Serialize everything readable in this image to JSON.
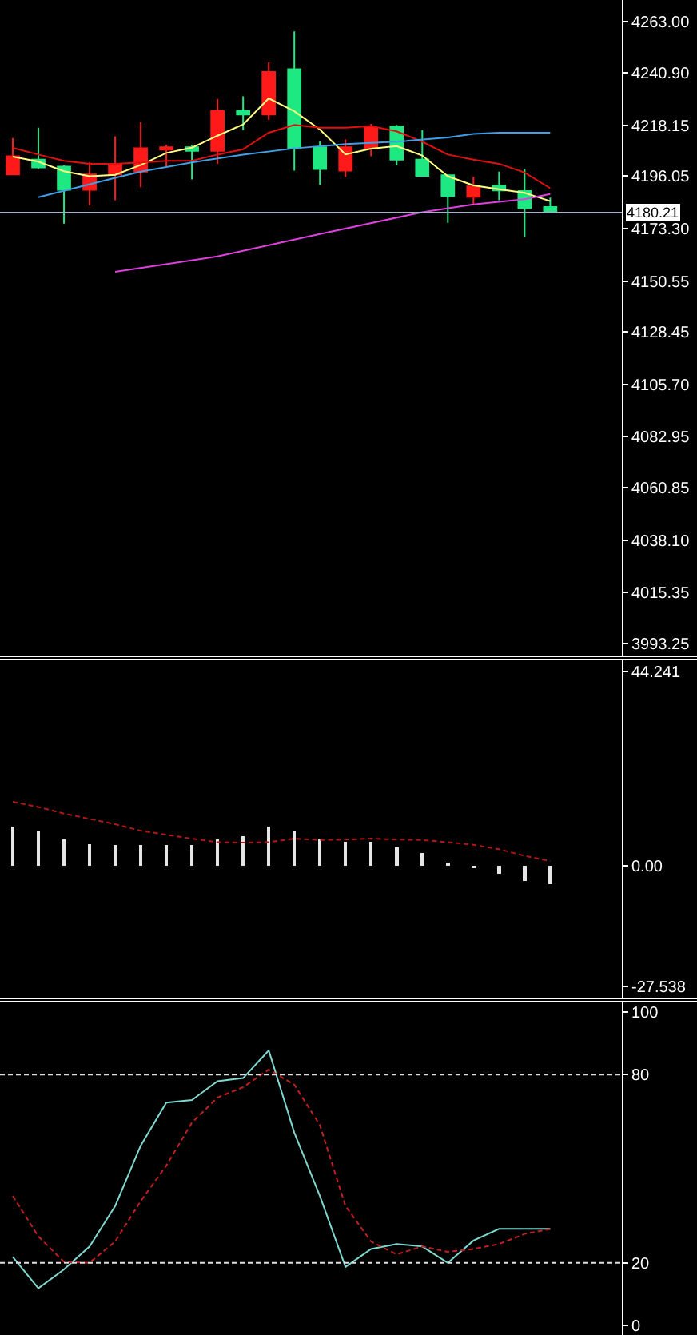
{
  "chart_data": [
    {
      "type": "candlestick",
      "categories": [
        null,
        null,
        null,
        null,
        null,
        null,
        null,
        null,
        null,
        null,
        null,
        null,
        null,
        null,
        null,
        null,
        null,
        null,
        null,
        null,
        null,
        null
      ],
      "ohlc": [
        [
          4196.8,
          4212.6,
          4196.8,
          4204.7
        ],
        [
          4203.2,
          4217.1,
          4199.1,
          4199.8
        ],
        [
          4200.2,
          4200.7,
          4175.4,
          4190.1
        ],
        [
          4190.1,
          4202.0,
          4183.3,
          4196.8
        ],
        [
          4196.8,
          4213.3,
          4185.6,
          4201.4
        ],
        [
          4198.0,
          4219.4,
          4191.2,
          4208.1
        ],
        [
          4207.5,
          4209.7,
          4199.8,
          4208.6
        ],
        [
          4208.6,
          4209.7,
          4194.6,
          4207.0
        ],
        [
          4207.0,
          4229.6,
          4201.4,
          4224.4
        ],
        [
          4224.4,
          4230.7,
          4216.0,
          4222.8
        ],
        [
          4222.8,
          4245.4,
          4220.5,
          4241.3
        ],
        [
          4242.5,
          4258.9,
          4198.4,
          4208.1
        ],
        [
          4208.6,
          4211.1,
          4192.3,
          4199.1
        ],
        [
          4198.4,
          4212.0,
          4195.7,
          4208.6
        ],
        [
          4208.1,
          4218.7,
          4204.7,
          4217.1
        ],
        [
          4217.6,
          4218.3,
          4200.7,
          4203.2
        ],
        [
          4203.2,
          4216.0,
          4196.0,
          4196.2
        ],
        [
          4196.4,
          4196.8,
          4175.8,
          4187.4
        ],
        [
          4187.1,
          4195.7,
          4184.0,
          4191.6
        ],
        [
          4191.9,
          4198.0,
          4185.6,
          4189.8
        ],
        [
          4189.6,
          4199.1,
          4169.7,
          4182.2
        ],
        [
          4182.6,
          4186.7,
          4179.9,
          4180.2
        ]
      ],
      "colors": [
        "#ff1a1a",
        "#1ee882",
        "#1ee882",
        "#ff1a1a",
        "#ff1a1a",
        "#ff1a1a",
        "#ff1a1a",
        "#1ee882",
        "#ff1a1a",
        "#1ee882",
        "#ff1a1a",
        "#1ee882",
        "#1ee882",
        "#ff1a1a",
        "#ff1a1a",
        "#1ee882",
        "#1ee882",
        "#1ee882",
        "#ff1a1a",
        "#1ee882",
        "#1ee882",
        "#1ee882"
      ],
      "series": [
        {
          "type": "line",
          "color": "#ffff80",
          "values": [
            4204.5,
            4202.3,
            4198.2,
            4196.0,
            4196.6,
            4200.9,
            4206.1,
            4208.4,
            4213.6,
            4218.5,
            4229.8,
            4224.2,
            4216.3,
            4205.5,
            4208.0,
            4209.1,
            4205.0,
            4196.0,
            4192.0,
            4190.4,
            4188.8,
            4185.2
          ]
        },
        {
          "type": "line",
          "color": "#e01010",
          "values": [
            4208.3,
            4205.4,
            4202.7,
            4201.4,
            4201.4,
            4202.0,
            4202.7,
            4202.7,
            4205.4,
            4207.7,
            4214.9,
            4218.3,
            4217.1,
            4217.1,
            4217.8,
            4215.5,
            4211.0,
            4205.4,
            4203.2,
            4201.4,
            4197.6,
            4190.8
          ]
        },
        {
          "type": "line",
          "color": "#3fa0e8",
          "values": [
            null,
            4186.9,
            null,
            null,
            4195.3,
            4198.0,
            null,
            4202.0,
            null,
            4205.4,
            null,
            4208.1,
            null,
            4210.0,
            null,
            4211.0,
            null,
            4212.8,
            4214.4,
            4214.9,
            4214.9,
            4214.9
          ]
        },
        {
          "type": "line",
          "color": "#e040e0",
          "values": [
            null,
            null,
            null,
            null,
            4154.5,
            null,
            null,
            null,
            4161.2,
            null,
            null,
            null,
            4170.9,
            null,
            null,
            null,
            4180.4,
            null,
            4183.8,
            null,
            4186.0,
            4188.3
          ]
        }
      ],
      "ylim": [
        3988,
        4272.5
      ],
      "yticks": [
        {
          "value": 4263,
          "label": "4263.00"
        },
        {
          "value": 4240.9,
          "label": "4240.90"
        },
        {
          "value": 4218.15,
          "label": "4218.15"
        },
        {
          "value": 4196.05,
          "label": "4196.05"
        },
        {
          "value": 4173.3,
          "label": "4173.30"
        },
        {
          "value": 4150.55,
          "label": "4150.55"
        },
        {
          "value": 4128.45,
          "label": "4128.45"
        },
        {
          "value": 4105.7,
          "label": "4105.70"
        },
        {
          "value": 4082.95,
          "label": "4082.95"
        },
        {
          "value": 4060.85,
          "label": "4060.85"
        },
        {
          "value": 4038.1,
          "label": "4038.10"
        },
        {
          "value": 4015.35,
          "label": "4015.35"
        },
        {
          "value": 3993.25,
          "label": "3993.25"
        }
      ],
      "ref_lines": [
        {
          "axis": "y",
          "value": 4180.21,
          "label": "4180.21",
          "color": "#a8b0c8"
        }
      ],
      "tick_labels": "y",
      "grid": false
    },
    {
      "type": "bar",
      "categories": [
        null,
        null,
        null,
        null,
        null,
        null,
        null,
        null,
        null,
        null,
        null,
        null,
        null,
        null,
        null,
        null,
        null,
        null,
        null,
        null,
        null,
        null
      ],
      "series": [
        {
          "type": "bar",
          "color": "#e6e6e6",
          "values": [
            8.9,
            7.8,
            6.0,
            5.0,
            4.8,
            4.8,
            4.8,
            4.8,
            6.0,
            6.8,
            8.9,
            7.8,
            6.0,
            5.4,
            5.4,
            4.2,
            2.9,
            0.8,
            -0.6,
            -1.8,
            -3.4,
            -4.2
          ]
        },
        {
          "type": "line",
          "color": "#b01818",
          "line_style": "dashed",
          "values": [
            14.6,
            13.4,
            11.9,
            10.7,
            9.5,
            8.0,
            7.1,
            6.2,
            5.4,
            5.3,
            5.4,
            6.2,
            5.9,
            6.0,
            6.2,
            6.0,
            5.9,
            5.4,
            4.8,
            3.8,
            2.3,
            1.1
          ]
        }
      ],
      "ylim": [
        -30,
        46.8
      ],
      "yticks": [
        44.241,
        {
          "value": 0,
          "label": "0.00"
        },
        -27.538
      ],
      "tick_labels": "y",
      "grid": false
    },
    {
      "type": "line",
      "categories": [
        null,
        null,
        null,
        null,
        null,
        null,
        null,
        null,
        null,
        null,
        null,
        null,
        null,
        null,
        null,
        null,
        null,
        null,
        null,
        null,
        null,
        null
      ],
      "series": [
        {
          "color": "#7fd8d0",
          "values": [
            21.9,
            11.9,
            17.9,
            25.2,
            38.1,
            57.4,
            71.1,
            71.9,
            77.9,
            78.9,
            87.7,
            61.5,
            41.3,
            18.7,
            24.4,
            26.0,
            25.2,
            20.0,
            27.1,
            30.8,
            30.8,
            30.8
          ]
        },
        {
          "color": "#c02020",
          "line_style": "dashed",
          "values": [
            41.3,
            28.4,
            20.3,
            20.0,
            26.8,
            39.7,
            51.0,
            64.7,
            72.7,
            76.0,
            81.6,
            76.8,
            63.9,
            38.1,
            26.8,
            22.7,
            25.2,
            23.5,
            24.4,
            26.0,
            29.2,
            30.8
          ]
        }
      ],
      "ylim": [
        -3,
        103
      ],
      "yticks": [
        0,
        20,
        80,
        100
      ],
      "ref_lines": [
        {
          "axis": "y",
          "value": 80,
          "label": null,
          "color": "#e0e0e0",
          "line_style": "dashed"
        },
        {
          "axis": "y",
          "value": 20,
          "label": null,
          "color": "#e0e0e0",
          "line_style": "dashed"
        }
      ],
      "tick_labels": "y",
      "grid": false
    }
  ]
}
